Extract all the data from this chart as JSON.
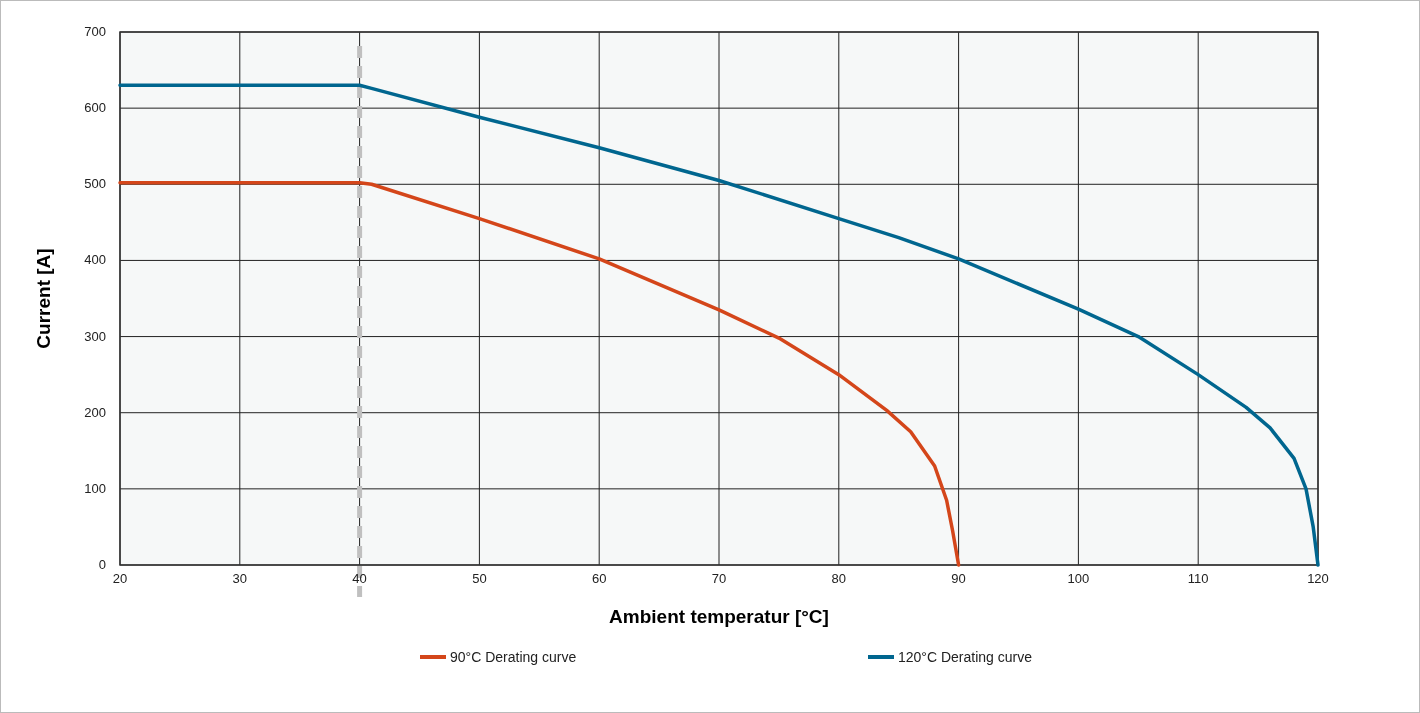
{
  "chart_data": {
    "type": "line",
    "xlabel": "Ambient temperatur [°C]",
    "ylabel": "Current [A]",
    "xlim": [
      20,
      120
    ],
    "xticks": [
      20,
      30,
      40,
      50,
      60,
      70,
      80,
      90,
      100,
      110,
      120
    ],
    "ylim": [
      0,
      700
    ],
    "yticks": [
      0,
      100,
      200,
      300,
      400,
      500,
      600,
      700
    ],
    "grid": true,
    "legend": "bottom",
    "marker": "none",
    "line_style": "solid",
    "ref_lines": [
      {
        "axis": "x",
        "value": 40,
        "color": "#c0c0c0",
        "line_style": "dashed"
      }
    ],
    "series": [
      {
        "name": "90°C Derating curve",
        "color": "#d4461a",
        "x": [
          20,
          40,
          41,
          50,
          60,
          70,
          75,
          80,
          84,
          86,
          88,
          89,
          89.5,
          90
        ],
        "values": [
          502,
          502,
          500,
          455,
          402,
          335,
          298,
          250,
          203,
          175,
          130,
          85,
          45,
          0
        ]
      },
      {
        "name": "120°C Derating curve",
        "color": "#00668f",
        "x": [
          20,
          40,
          41,
          50,
          60,
          70,
          80,
          85,
          90,
          100,
          105,
          110,
          114,
          116,
          118,
          119,
          119.6,
          120
        ],
        "values": [
          630,
          630,
          626,
          588,
          548,
          505,
          455,
          430,
          402,
          336,
          300,
          250,
          207,
          180,
          140,
          100,
          50,
          0
        ]
      }
    ]
  }
}
